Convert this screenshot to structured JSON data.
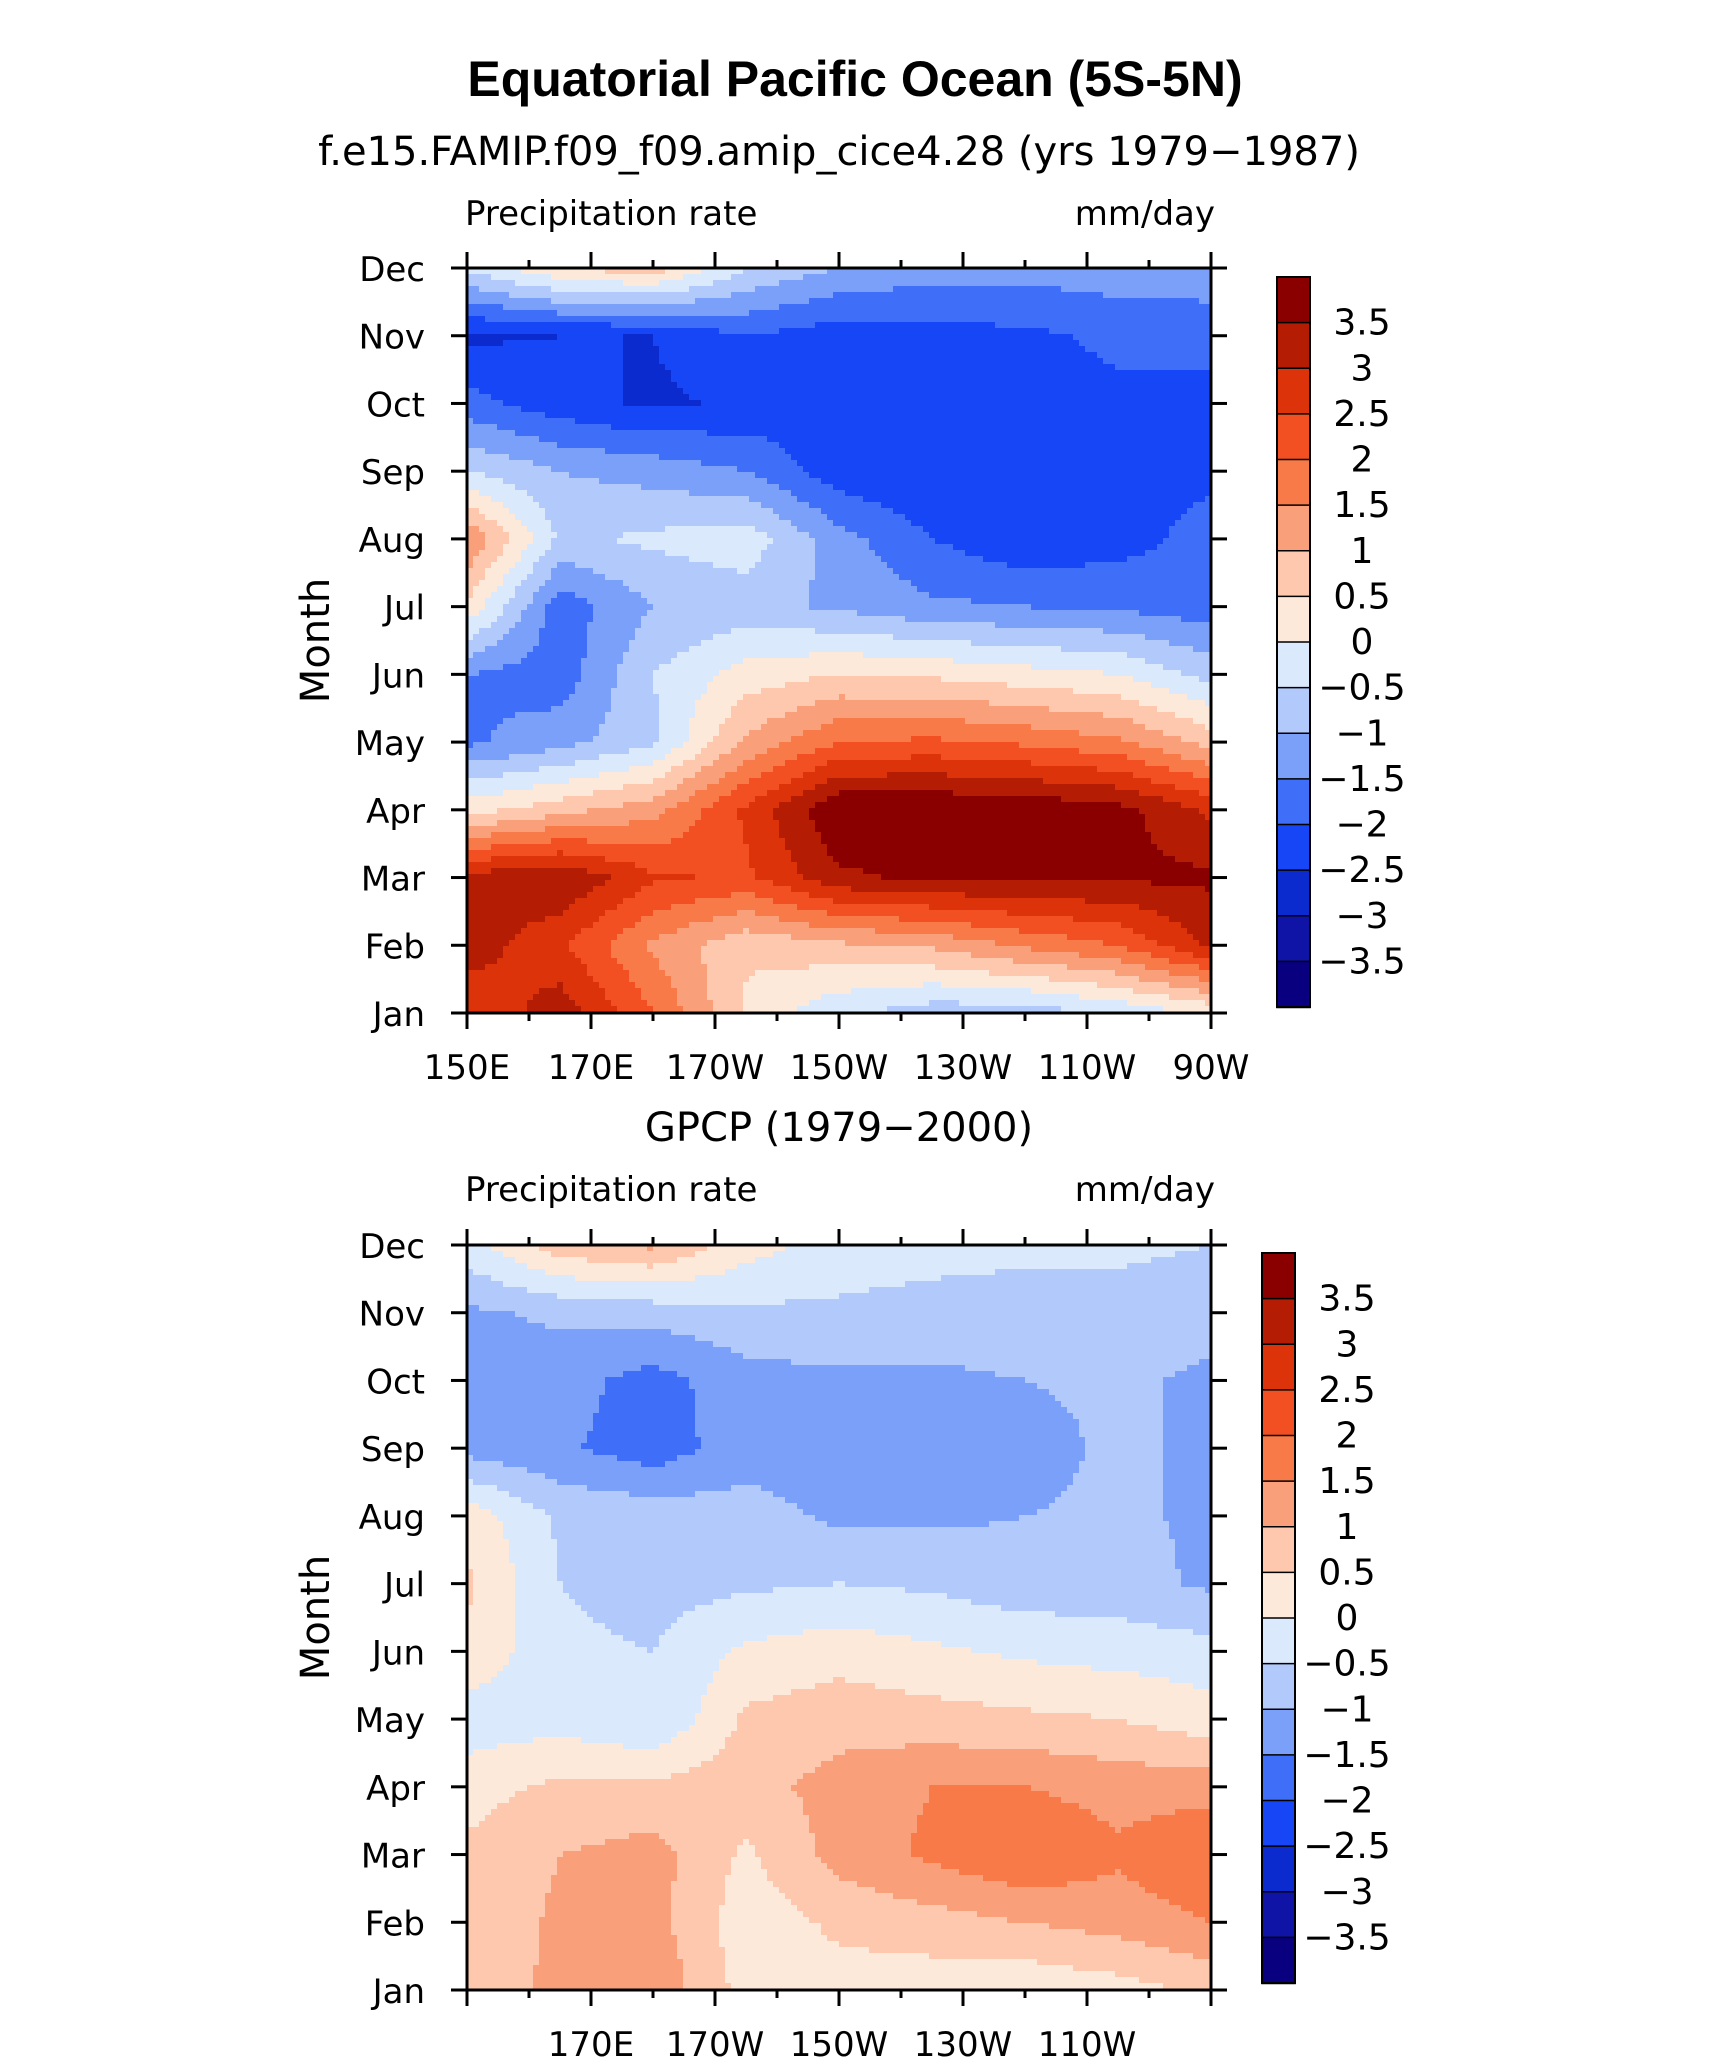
{
  "figure": {
    "title": "Equatorial Pacific Ocean (5S-5N)"
  },
  "chart_data": [
    {
      "type": "contour",
      "title": "f.e15.FAMIP.f09_f09.amip_cice4.28 (yrs 1979−1987)",
      "left_label": "Precipitation rate",
      "right_label": "mm/day",
      "ylabel": "Month",
      "xlabel": "",
      "x_ticks": [
        "150E",
        "170E",
        "170W",
        "150W",
        "130W",
        "110W",
        "90W"
      ],
      "x_tick_lon": [
        150,
        170,
        190,
        210,
        230,
        250,
        270
      ],
      "xlim": [
        150,
        270
      ],
      "y_ticks": [
        "Jan",
        "Feb",
        "Mar",
        "Apr",
        "May",
        "Jun",
        "Jul",
        "Aug",
        "Sep",
        "Oct",
        "Nov",
        "Dec"
      ],
      "ylim": [
        1,
        12
      ],
      "levels": [
        -3.5,
        -3,
        -2.5,
        -2,
        -1.5,
        -1,
        -0.5,
        0,
        0.5,
        1,
        1.5,
        2,
        2.5,
        3,
        3.5
      ],
      "colorbar_labels": [
        "3.5",
        "3",
        "2.5",
        "2",
        "1.5",
        "1",
        "0.5",
        "0",
        "−0.5",
        "−1",
        "−1.5",
        "−2",
        "−2.5",
        "−3",
        "−3.5"
      ],
      "colors": [
        "#08007f",
        "#0f14a6",
        "#0b2bcf",
        "#1646f5",
        "#3f6ef8",
        "#7aa0fa",
        "#b1c9fb",
        "#dbe9fc",
        "#fde9da",
        "#fdc8ad",
        "#f9a07a",
        "#f77a48",
        "#f24f22",
        "#dc330b",
        "#b41c03",
        "#8a0000"
      ],
      "grid_lon": [
        150,
        165,
        180,
        195,
        210,
        225,
        240,
        255,
        270
      ],
      "values": [
        [
          2.5,
          3.3,
          2.0,
          0.4,
          -0.4,
          -0.8,
          -0.8,
          -0.4,
          0.1
        ],
        [
          3.3,
          2.6,
          1.4,
          0.6,
          0.9,
          1.1,
          1.6,
          2.0,
          3.1
        ],
        [
          3.2,
          3.5,
          2.6,
          2.4,
          3.4,
          3.6,
          3.6,
          3.6,
          3.6
        ],
        [
          0.3,
          0.8,
          1.3,
          2.6,
          4.0,
          4.0,
          3.9,
          3.7,
          2.9
        ],
        [
          -1.6,
          -1.2,
          -0.6,
          1.1,
          2.0,
          2.1,
          1.9,
          1.6,
          0.8
        ],
        [
          -1.5,
          -1.8,
          -0.5,
          0.2,
          0.5,
          0.4,
          0.2,
          0.0,
          -0.7
        ],
        [
          0.4,
          -1.8,
          -1.0,
          -0.8,
          -1.1,
          -1.4,
          -1.5,
          -1.6,
          -1.8
        ],
        [
          1.5,
          -0.6,
          -0.4,
          -0.2,
          -1.3,
          -2.0,
          -2.4,
          -2.2,
          -1.8
        ],
        [
          -0.5,
          -1.0,
          -1.2,
          -1.5,
          -2.3,
          -2.5,
          -2.5,
          -2.3,
          -2.1
        ],
        [
          -1.8,
          -2.3,
          -2.6,
          -2.4,
          -2.3,
          -2.3,
          -2.2,
          -2.1,
          -2.2
        ],
        [
          -2.6,
          -2.5,
          -2.5,
          -2.0,
          -2.3,
          -2.2,
          -2.1,
          -1.9,
          -1.8
        ],
        [
          -0.4,
          0.5,
          0.8,
          -0.5,
          -1.0,
          -1.3,
          -1.3,
          -1.2,
          -1.2
        ]
      ]
    },
    {
      "type": "contour",
      "title": "GPCP (1979−2000)",
      "left_label": "Precipitation rate",
      "right_label": "mm/day",
      "ylabel": "Month",
      "xlabel": "",
      "x_ticks": [
        "170E",
        "170W",
        "150W",
        "130W",
        "110W"
      ],
      "x_tick_lon": [
        170,
        190,
        210,
        230,
        250
      ],
      "xlim": [
        150,
        270
      ],
      "y_ticks": [
        "Jan",
        "Feb",
        "Mar",
        "Apr",
        "May",
        "Jun",
        "Jul",
        "Aug",
        "Sep",
        "Oct",
        "Nov",
        "Dec"
      ],
      "ylim": [
        1,
        12
      ],
      "levels": [
        -3.5,
        -3,
        -2.5,
        -2,
        -1.5,
        -1,
        -0.5,
        0,
        0.5,
        1,
        1.5,
        2,
        2.5,
        3,
        3.5
      ],
      "colorbar_labels": [
        "3.5",
        "3",
        "2.5",
        "2",
        "1.5",
        "1",
        "0.5",
        "0",
        "−0.5",
        "−1",
        "−1.5",
        "−2",
        "−2.5",
        "−3",
        "−3.5"
      ],
      "colors": [
        "#08007f",
        "#0f14a6",
        "#0b2bcf",
        "#1646f5",
        "#3f6ef8",
        "#7aa0fa",
        "#b1c9fb",
        "#dbe9fc",
        "#fde9da",
        "#fdc8ad",
        "#f9a07a",
        "#f77a48",
        "#f24f22",
        "#dc330b",
        "#b41c03",
        "#8a0000"
      ],
      "grid_lon": [
        150,
        165,
        180,
        195,
        210,
        225,
        240,
        255,
        270
      ],
      "values": [
        [
          0.5,
          1.2,
          1.4,
          0.3,
          0.3,
          0.2,
          0.1,
          0.3,
          0.6
        ],
        [
          0.6,
          1.1,
          1.2,
          0.2,
          0.6,
          0.8,
          1.0,
          1.2,
          1.5
        ],
        [
          0.6,
          1.0,
          1.2,
          0.4,
          1.2,
          1.6,
          2.0,
          1.6,
          2.0
        ],
        [
          0.3,
          0.6,
          0.6,
          0.8,
          1.2,
          1.5,
          1.5,
          1.3,
          1.3
        ],
        [
          -0.3,
          -0.2,
          -0.5,
          0.6,
          0.8,
          0.7,
          0.6,
          0.5,
          0.2
        ],
        [
          0.4,
          -0.4,
          -0.5,
          0.1,
          0.3,
          0.1,
          -0.1,
          -0.2,
          -0.3
        ],
        [
          0.6,
          -0.5,
          -0.7,
          -0.6,
          -0.5,
          -0.6,
          -0.8,
          -0.8,
          -1.1
        ],
        [
          0.3,
          -0.6,
          -0.7,
          -0.8,
          -1.1,
          -1.1,
          -1.0,
          -0.9,
          -1.1
        ],
        [
          -1.2,
          -1.4,
          -1.8,
          -1.2,
          -1.3,
          -1.2,
          -1.2,
          -0.9,
          -1.1
        ],
        [
          -1.2,
          -1.3,
          -1.7,
          -1.2,
          -1.1,
          -1.1,
          -1.0,
          -0.9,
          -1.1
        ],
        [
          -1.1,
          -0.9,
          -0.8,
          -0.6,
          -0.6,
          -0.7,
          -0.7,
          -0.7,
          -0.8
        ],
        [
          -0.2,
          0.8,
          1.1,
          0.2,
          -0.2,
          -0.3,
          -0.4,
          -0.4,
          -0.5
        ]
      ]
    }
  ]
}
